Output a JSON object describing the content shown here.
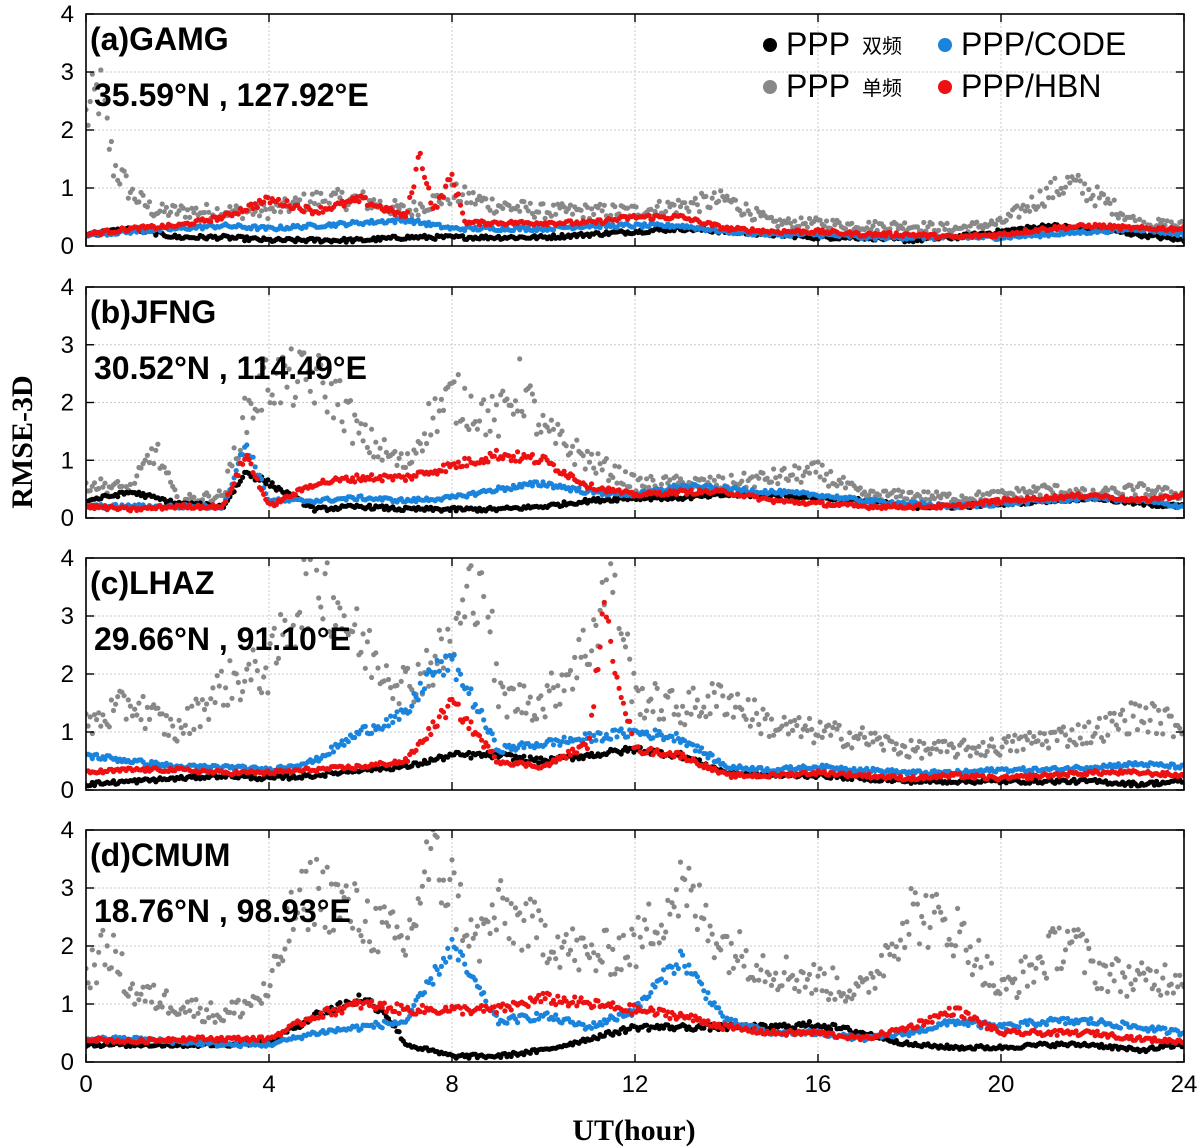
{
  "chart_data": [
    {
      "type": "scatter",
      "panel_label": "(a)GAMG",
      "coords": "35.59°N , 127.92°E",
      "ylim": [
        0,
        4
      ],
      "xlim": [
        0,
        24
      ],
      "legend": "top-right",
      "series": [
        {
          "name": "PPP",
          "color": "#000000",
          "x": [
            0,
            1,
            2,
            3,
            4,
            5,
            6,
            7,
            8,
            9,
            10,
            11,
            12,
            13,
            14,
            15,
            16,
            17,
            18,
            19,
            20,
            21,
            22,
            23,
            24
          ],
          "y": [
            0.2,
            0.3,
            0.15,
            0.15,
            0.1,
            0.1,
            0.1,
            0.15,
            0.15,
            0.15,
            0.15,
            0.2,
            0.25,
            0.3,
            0.25,
            0.2,
            0.15,
            0.15,
            0.1,
            0.15,
            0.25,
            0.35,
            0.3,
            0.2,
            0.1
          ]
        },
        {
          "name": "PPP",
          "color": "#888888",
          "x": [
            0,
            0.3,
            0.6,
            1,
            1.5,
            2,
            3,
            4,
            5,
            6,
            7,
            8,
            9,
            10,
            11,
            12,
            13,
            14,
            15,
            16,
            17,
            18,
            19,
            20,
            21,
            21.5,
            22,
            23,
            24
          ],
          "y": [
            2.2,
            2.7,
            1.4,
            0.9,
            0.6,
            0.6,
            0.6,
            0.6,
            0.8,
            0.8,
            0.6,
            0.9,
            0.7,
            0.6,
            0.6,
            0.6,
            0.7,
            0.8,
            0.4,
            0.4,
            0.35,
            0.35,
            0.3,
            0.4,
            0.9,
            1.1,
            0.9,
            0.4,
            0.35
          ]
        },
        {
          "name": "PPP/CODE",
          "color": "#1a84dc",
          "x": [
            0,
            1,
            2,
            3,
            4,
            5,
            6,
            7,
            8,
            9,
            10,
            11,
            12,
            13,
            14,
            15,
            16,
            17,
            18,
            19,
            20,
            21,
            22,
            23,
            24
          ],
          "y": [
            0.2,
            0.25,
            0.3,
            0.35,
            0.3,
            0.35,
            0.4,
            0.45,
            0.3,
            0.3,
            0.3,
            0.35,
            0.35,
            0.35,
            0.25,
            0.2,
            0.2,
            0.15,
            0.15,
            0.15,
            0.15,
            0.2,
            0.25,
            0.3,
            0.2
          ]
        },
        {
          "name": "PPP/HBN",
          "color": "#ee1111",
          "x": [
            0,
            1,
            2,
            3,
            4,
            5,
            6,
            7,
            7.3,
            7.6,
            8,
            8.3,
            8.6,
            9,
            10,
            11,
            12,
            13,
            14,
            15,
            16,
            17,
            18,
            19,
            20,
            21,
            22,
            23,
            24
          ],
          "y": [
            0.2,
            0.3,
            0.35,
            0.5,
            0.8,
            0.6,
            0.8,
            0.5,
            1.6,
            0.6,
            1.2,
            0.4,
            0.4,
            0.4,
            0.4,
            0.4,
            0.5,
            0.5,
            0.3,
            0.25,
            0.25,
            0.2,
            0.2,
            0.15,
            0.2,
            0.3,
            0.35,
            0.3,
            0.3
          ]
        }
      ]
    },
    {
      "type": "scatter",
      "panel_label": "(b)JFNG",
      "coords": "30.52°N , 114.49°E",
      "ylim": [
        0,
        4
      ],
      "xlim": [
        0,
        24
      ],
      "series": [
        {
          "name": "PPP",
          "color": "#000000",
          "x": [
            0,
            1,
            2,
            3,
            3.5,
            4,
            5,
            6,
            7,
            8,
            9,
            10,
            11,
            12,
            13,
            14,
            15,
            16,
            17,
            18,
            19,
            20,
            21,
            22,
            23,
            24
          ],
          "y": [
            0.3,
            0.45,
            0.25,
            0.2,
            0.8,
            0.6,
            0.15,
            0.2,
            0.15,
            0.15,
            0.15,
            0.2,
            0.3,
            0.35,
            0.35,
            0.4,
            0.4,
            0.35,
            0.3,
            0.2,
            0.2,
            0.25,
            0.3,
            0.35,
            0.25,
            0.2
          ]
        },
        {
          "name": "PPP",
          "color": "#888888",
          "x": [
            0,
            1,
            1.5,
            2,
            3,
            3.5,
            4,
            5,
            5.5,
            6,
            7,
            7.5,
            8,
            9,
            9.5,
            10,
            11,
            12,
            13,
            14,
            15,
            16,
            17,
            18,
            19,
            20,
            21,
            22,
            23,
            24
          ],
          "y": [
            0.6,
            0.5,
            1.2,
            0.3,
            0.4,
            1.8,
            2.4,
            2.4,
            2.1,
            1.4,
            0.9,
            1.7,
            2.1,
            1.7,
            2.3,
            1.5,
            1.0,
            0.6,
            0.6,
            0.6,
            0.7,
            0.8,
            0.4,
            0.4,
            0.35,
            0.4,
            0.5,
            0.4,
            0.5,
            0.4
          ]
        },
        {
          "name": "PPP/CODE",
          "color": "#1a84dc",
          "x": [
            0,
            1,
            2,
            3,
            3.5,
            4,
            5,
            6,
            7,
            8,
            9,
            10,
            11,
            12,
            13,
            14,
            15,
            16,
            17,
            18,
            19,
            20,
            21,
            22,
            23,
            24
          ],
          "y": [
            0.2,
            0.2,
            0.2,
            0.2,
            1.3,
            0.3,
            0.3,
            0.35,
            0.3,
            0.35,
            0.5,
            0.6,
            0.45,
            0.4,
            0.55,
            0.5,
            0.45,
            0.4,
            0.3,
            0.25,
            0.2,
            0.25,
            0.3,
            0.35,
            0.3,
            0.2
          ]
        },
        {
          "name": "PPP/HBN",
          "color": "#ee1111",
          "x": [
            0,
            1,
            2,
            3,
            3.5,
            4,
            5,
            6,
            7,
            8,
            9,
            10,
            11,
            12,
            13,
            14,
            15,
            16,
            17,
            18,
            19,
            20,
            21,
            22,
            23,
            24
          ],
          "y": [
            0.2,
            0.15,
            0.2,
            0.2,
            1.1,
            0.2,
            0.6,
            0.7,
            0.7,
            0.9,
            1.1,
            1.0,
            0.55,
            0.4,
            0.45,
            0.45,
            0.3,
            0.25,
            0.2,
            0.2,
            0.2,
            0.3,
            0.35,
            0.4,
            0.3,
            0.4
          ]
        }
      ]
    },
    {
      "type": "scatter",
      "panel_label": "(c)LHAZ",
      "coords": "29.66°N , 91.10°E",
      "ylim": [
        0,
        4
      ],
      "xlim": [
        0,
        24
      ],
      "series": [
        {
          "name": "PPP",
          "color": "#000000",
          "x": [
            0,
            1,
            2,
            3,
            4,
            5,
            6,
            7,
            8,
            9,
            10,
            11,
            12,
            13,
            14,
            15,
            16,
            17,
            18,
            19,
            20,
            21,
            22,
            23,
            24
          ],
          "y": [
            0.1,
            0.15,
            0.2,
            0.25,
            0.2,
            0.25,
            0.35,
            0.4,
            0.6,
            0.6,
            0.5,
            0.6,
            0.7,
            0.6,
            0.3,
            0.25,
            0.25,
            0.2,
            0.15,
            0.15,
            0.15,
            0.15,
            0.15,
            0.1,
            0.15
          ]
        },
        {
          "name": "PPP",
          "color": "#888888",
          "x": [
            0,
            1,
            2,
            3,
            4,
            5,
            5.5,
            6,
            7,
            8,
            8.7,
            9,
            10,
            11,
            11.5,
            12,
            13,
            14,
            15,
            16,
            17,
            18,
            19,
            20,
            21,
            22,
            23,
            24
          ],
          "y": [
            1.1,
            1.5,
            1.0,
            1.8,
            2.1,
            3.8,
            3.2,
            2.5,
            1.8,
            2.5,
            4.0,
            1.6,
            1.5,
            2.5,
            3.9,
            1.6,
            1.4,
            1.6,
            1.1,
            1.0,
            0.9,
            0.7,
            0.7,
            0.75,
            0.9,
            1.0,
            1.3,
            1.1
          ]
        },
        {
          "name": "PPP/CODE",
          "color": "#1a84dc",
          "x": [
            0,
            1,
            2,
            3,
            4,
            5,
            6,
            7,
            7.5,
            8,
            8.5,
            9,
            10,
            11,
            12,
            13,
            14,
            15,
            16,
            17,
            18,
            19,
            20,
            21,
            22,
            23,
            24
          ],
          "y": [
            0.6,
            0.5,
            0.4,
            0.4,
            0.35,
            0.5,
            1.0,
            1.3,
            2.0,
            2.2,
            1.5,
            0.7,
            0.8,
            0.9,
            1.0,
            0.9,
            0.4,
            0.35,
            0.4,
            0.35,
            0.3,
            0.3,
            0.35,
            0.35,
            0.4,
            0.45,
            0.4
          ]
        },
        {
          "name": "PPP/HBN",
          "color": "#ee1111",
          "x": [
            0,
            1,
            2,
            3,
            4,
            5,
            6,
            7,
            8,
            8.5,
            9,
            10,
            11,
            11.3,
            12,
            13,
            14,
            15,
            16,
            17,
            18,
            19,
            20,
            21,
            22,
            23,
            24
          ],
          "y": [
            0.3,
            0.35,
            0.35,
            0.3,
            0.3,
            0.35,
            0.4,
            0.5,
            1.5,
            1.0,
            0.5,
            0.4,
            0.8,
            3.1,
            0.7,
            0.6,
            0.25,
            0.25,
            0.3,
            0.25,
            0.2,
            0.25,
            0.2,
            0.25,
            0.3,
            0.3,
            0.25
          ]
        }
      ]
    },
    {
      "type": "scatter",
      "panel_label": "(d)CMUM",
      "coords": "18.76°N , 98.93°E",
      "ylim": [
        0,
        4
      ],
      "xlim": [
        0,
        24
      ],
      "series": [
        {
          "name": "PPP",
          "color": "#000000",
          "x": [
            0,
            1,
            2,
            3,
            4,
            5,
            6,
            6.5,
            7,
            8,
            9,
            10,
            11,
            12,
            13,
            14,
            15,
            16,
            17,
            18,
            19,
            20,
            21,
            22,
            23,
            24
          ],
          "y": [
            0.3,
            0.3,
            0.3,
            0.3,
            0.35,
            0.8,
            1.1,
            0.9,
            0.3,
            0.1,
            0.1,
            0.2,
            0.4,
            0.6,
            0.6,
            0.6,
            0.6,
            0.65,
            0.5,
            0.3,
            0.25,
            0.25,
            0.3,
            0.3,
            0.2,
            0.3
          ]
        },
        {
          "name": "PPP",
          "color": "#888888",
          "x": [
            0,
            0.5,
            1,
            2,
            3,
            4,
            4.5,
            5,
            6,
            7,
            7.5,
            8,
            8.5,
            9,
            10,
            11,
            12,
            13,
            14,
            15,
            16,
            17,
            18,
            19,
            19.5,
            20,
            21,
            21.5,
            22,
            23,
            24
          ],
          "y": [
            1.5,
            2.0,
            1.2,
            1.0,
            0.8,
            1.2,
            2.5,
            3.0,
            2.5,
            2.0,
            3.5,
            3.0,
            2.0,
            2.6,
            2.2,
            1.8,
            2.0,
            3.0,
            2.0,
            1.6,
            1.4,
            1.2,
            2.6,
            2.3,
            1.8,
            1.2,
            1.8,
            2.2,
            1.6,
            1.4,
            1.5
          ]
        },
        {
          "name": "PPP/CODE",
          "color": "#1a84dc",
          "x": [
            0,
            1,
            2,
            3,
            4,
            5,
            6,
            7,
            8,
            9,
            10,
            11,
            12,
            13,
            14,
            15,
            16,
            17,
            18,
            19,
            20,
            21,
            22,
            23,
            24
          ],
          "y": [
            0.4,
            0.4,
            0.35,
            0.3,
            0.3,
            0.5,
            0.6,
            0.7,
            2.0,
            0.7,
            0.8,
            0.6,
            0.9,
            1.8,
            0.7,
            0.5,
            0.5,
            0.4,
            0.5,
            0.7,
            0.6,
            0.7,
            0.7,
            0.6,
            0.5
          ]
        },
        {
          "name": "PPP/HBN",
          "color": "#ee1111",
          "x": [
            0,
            1,
            2,
            3,
            4,
            5,
            6,
            7,
            8,
            9,
            10,
            11,
            12,
            13,
            14,
            15,
            16,
            17,
            18,
            19,
            20,
            21,
            22,
            23,
            24
          ],
          "y": [
            0.4,
            0.35,
            0.4,
            0.4,
            0.4,
            0.8,
            1.0,
            0.9,
            0.9,
            0.9,
            1.1,
            1.0,
            0.9,
            0.8,
            0.6,
            0.5,
            0.5,
            0.4,
            0.6,
            0.9,
            0.5,
            0.5,
            0.5,
            0.4,
            0.35
          ]
        }
      ]
    }
  ],
  "xlabel": "UT(hour)",
  "ylabel": "RMSE-3D",
  "x_ticks": [
    "0",
    "4",
    "8",
    "12",
    "16",
    "20",
    "24"
  ],
  "y_ticks": [
    "0",
    "1",
    "2",
    "3",
    "4"
  ],
  "legend": [
    {
      "label": "PPP",
      "label_suffix": "双频",
      "color": "#000000"
    },
    {
      "label": "PPP/CODE",
      "color": "#1a84dc"
    },
    {
      "label": "PPP",
      "label_suffix": "单频",
      "color": "#888888"
    },
    {
      "label": "PPP/HBN",
      "color": "#ee1111"
    }
  ]
}
